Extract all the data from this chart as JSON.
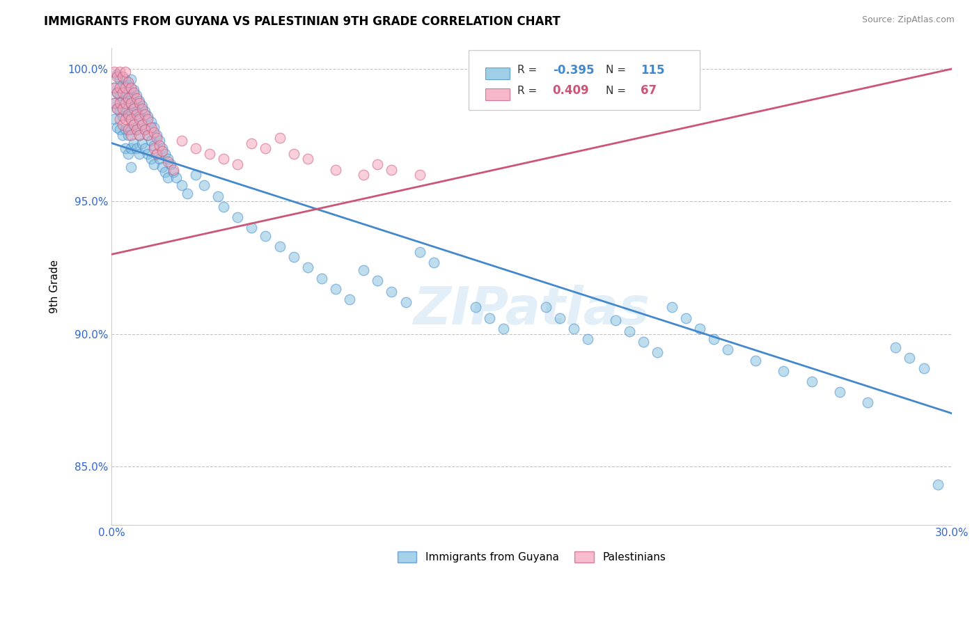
{
  "title": "IMMIGRANTS FROM GUYANA VS PALESTINIAN 9TH GRADE CORRELATION CHART",
  "source_text": "Source: ZipAtlas.com",
  "ylabel": "9th Grade",
  "xlim": [
    0.0,
    0.3
  ],
  "ylim": [
    0.828,
    1.008
  ],
  "xticks": [
    0.0,
    0.05,
    0.1,
    0.15,
    0.2,
    0.25,
    0.3
  ],
  "xtick_labels": [
    "0.0%",
    "",
    "",
    "",
    "",
    "",
    "30.0%"
  ],
  "yticks": [
    0.85,
    0.9,
    0.95,
    1.0
  ],
  "ytick_labels": [
    "85.0%",
    "90.0%",
    "95.0%",
    "100.0%"
  ],
  "watermark": "ZIPatlas",
  "blue_color": "#7fbfdf",
  "pink_color": "#f4a0b8",
  "blue_line_color": "#4488cc",
  "pink_line_color": "#cc5577",
  "R_blue": -0.395,
  "N_blue": 115,
  "R_pink": 0.409,
  "N_pink": 67,
  "blue_scatter": [
    [
      0.001,
      0.993
    ],
    [
      0.001,
      0.987
    ],
    [
      0.001,
      0.981
    ],
    [
      0.002,
      0.998
    ],
    [
      0.002,
      0.991
    ],
    [
      0.002,
      0.985
    ],
    [
      0.002,
      0.978
    ],
    [
      0.003,
      0.996
    ],
    [
      0.003,
      0.99
    ],
    [
      0.003,
      0.984
    ],
    [
      0.003,
      0.977
    ],
    [
      0.004,
      0.994
    ],
    [
      0.004,
      0.988
    ],
    [
      0.004,
      0.982
    ],
    [
      0.004,
      0.975
    ],
    [
      0.005,
      0.996
    ],
    [
      0.005,
      0.99
    ],
    [
      0.005,
      0.984
    ],
    [
      0.005,
      0.977
    ],
    [
      0.005,
      0.97
    ],
    [
      0.006,
      0.994
    ],
    [
      0.006,
      0.988
    ],
    [
      0.006,
      0.982
    ],
    [
      0.006,
      0.975
    ],
    [
      0.006,
      0.968
    ],
    [
      0.007,
      0.996
    ],
    [
      0.007,
      0.99
    ],
    [
      0.007,
      0.984
    ],
    [
      0.007,
      0.977
    ],
    [
      0.007,
      0.97
    ],
    [
      0.007,
      0.963
    ],
    [
      0.008,
      0.992
    ],
    [
      0.008,
      0.986
    ],
    [
      0.008,
      0.979
    ],
    [
      0.008,
      0.972
    ],
    [
      0.009,
      0.99
    ],
    [
      0.009,
      0.984
    ],
    [
      0.009,
      0.977
    ],
    [
      0.009,
      0.97
    ],
    [
      0.01,
      0.988
    ],
    [
      0.01,
      0.982
    ],
    [
      0.01,
      0.975
    ],
    [
      0.01,
      0.968
    ],
    [
      0.011,
      0.986
    ],
    [
      0.011,
      0.979
    ],
    [
      0.011,
      0.972
    ],
    [
      0.012,
      0.984
    ],
    [
      0.012,
      0.977
    ],
    [
      0.012,
      0.97
    ],
    [
      0.013,
      0.982
    ],
    [
      0.013,
      0.975
    ],
    [
      0.013,
      0.968
    ],
    [
      0.014,
      0.98
    ],
    [
      0.014,
      0.973
    ],
    [
      0.014,
      0.966
    ],
    [
      0.015,
      0.978
    ],
    [
      0.015,
      0.971
    ],
    [
      0.015,
      0.964
    ],
    [
      0.016,
      0.975
    ],
    [
      0.016,
      0.968
    ],
    [
      0.017,
      0.973
    ],
    [
      0.017,
      0.966
    ],
    [
      0.018,
      0.97
    ],
    [
      0.018,
      0.963
    ],
    [
      0.019,
      0.968
    ],
    [
      0.019,
      0.961
    ],
    [
      0.02,
      0.966
    ],
    [
      0.02,
      0.959
    ],
    [
      0.021,
      0.964
    ],
    [
      0.022,
      0.961
    ],
    [
      0.023,
      0.959
    ],
    [
      0.025,
      0.956
    ],
    [
      0.027,
      0.953
    ],
    [
      0.03,
      0.96
    ],
    [
      0.033,
      0.956
    ],
    [
      0.038,
      0.952
    ],
    [
      0.04,
      0.948
    ],
    [
      0.045,
      0.944
    ],
    [
      0.05,
      0.94
    ],
    [
      0.055,
      0.937
    ],
    [
      0.06,
      0.933
    ],
    [
      0.065,
      0.929
    ],
    [
      0.07,
      0.925
    ],
    [
      0.075,
      0.921
    ],
    [
      0.08,
      0.917
    ],
    [
      0.085,
      0.913
    ],
    [
      0.09,
      0.924
    ],
    [
      0.095,
      0.92
    ],
    [
      0.1,
      0.916
    ],
    [
      0.105,
      0.912
    ],
    [
      0.11,
      0.931
    ],
    [
      0.115,
      0.927
    ],
    [
      0.13,
      0.91
    ],
    [
      0.135,
      0.906
    ],
    [
      0.14,
      0.902
    ],
    [
      0.155,
      0.91
    ],
    [
      0.16,
      0.906
    ],
    [
      0.165,
      0.902
    ],
    [
      0.17,
      0.898
    ],
    [
      0.18,
      0.905
    ],
    [
      0.185,
      0.901
    ],
    [
      0.19,
      0.897
    ],
    [
      0.195,
      0.893
    ],
    [
      0.2,
      0.91
    ],
    [
      0.205,
      0.906
    ],
    [
      0.21,
      0.902
    ],
    [
      0.215,
      0.898
    ],
    [
      0.22,
      0.894
    ],
    [
      0.23,
      0.89
    ],
    [
      0.24,
      0.886
    ],
    [
      0.25,
      0.882
    ],
    [
      0.26,
      0.878
    ],
    [
      0.27,
      0.874
    ],
    [
      0.28,
      0.895
    ],
    [
      0.285,
      0.891
    ],
    [
      0.29,
      0.887
    ],
    [
      0.295,
      0.843
    ]
  ],
  "pink_scatter": [
    [
      0.001,
      0.999
    ],
    [
      0.001,
      0.993
    ],
    [
      0.001,
      0.987
    ],
    [
      0.002,
      0.997
    ],
    [
      0.002,
      0.991
    ],
    [
      0.002,
      0.985
    ],
    [
      0.003,
      0.999
    ],
    [
      0.003,
      0.993
    ],
    [
      0.003,
      0.987
    ],
    [
      0.003,
      0.981
    ],
    [
      0.004,
      0.997
    ],
    [
      0.004,
      0.991
    ],
    [
      0.004,
      0.985
    ],
    [
      0.004,
      0.979
    ],
    [
      0.005,
      0.999
    ],
    [
      0.005,
      0.993
    ],
    [
      0.005,
      0.987
    ],
    [
      0.005,
      0.981
    ],
    [
      0.006,
      0.995
    ],
    [
      0.006,
      0.989
    ],
    [
      0.006,
      0.983
    ],
    [
      0.006,
      0.977
    ],
    [
      0.007,
      0.993
    ],
    [
      0.007,
      0.987
    ],
    [
      0.007,
      0.981
    ],
    [
      0.007,
      0.975
    ],
    [
      0.008,
      0.991
    ],
    [
      0.008,
      0.985
    ],
    [
      0.008,
      0.979
    ],
    [
      0.009,
      0.989
    ],
    [
      0.009,
      0.983
    ],
    [
      0.009,
      0.977
    ],
    [
      0.01,
      0.987
    ],
    [
      0.01,
      0.981
    ],
    [
      0.01,
      0.975
    ],
    [
      0.011,
      0.985
    ],
    [
      0.011,
      0.979
    ],
    [
      0.012,
      0.983
    ],
    [
      0.012,
      0.977
    ],
    [
      0.013,
      0.981
    ],
    [
      0.013,
      0.975
    ],
    [
      0.014,
      0.978
    ],
    [
      0.015,
      0.976
    ],
    [
      0.015,
      0.97
    ],
    [
      0.016,
      0.974
    ],
    [
      0.016,
      0.968
    ],
    [
      0.017,
      0.971
    ],
    [
      0.018,
      0.969
    ],
    [
      0.02,
      0.965
    ],
    [
      0.022,
      0.962
    ],
    [
      0.025,
      0.973
    ],
    [
      0.03,
      0.97
    ],
    [
      0.035,
      0.968
    ],
    [
      0.04,
      0.966
    ],
    [
      0.045,
      0.964
    ],
    [
      0.05,
      0.972
    ],
    [
      0.055,
      0.97
    ],
    [
      0.06,
      0.974
    ],
    [
      0.065,
      0.968
    ],
    [
      0.07,
      0.966
    ],
    [
      0.08,
      0.962
    ],
    [
      0.09,
      0.96
    ],
    [
      0.095,
      0.964
    ],
    [
      0.1,
      0.962
    ],
    [
      0.11,
      0.96
    ]
  ]
}
